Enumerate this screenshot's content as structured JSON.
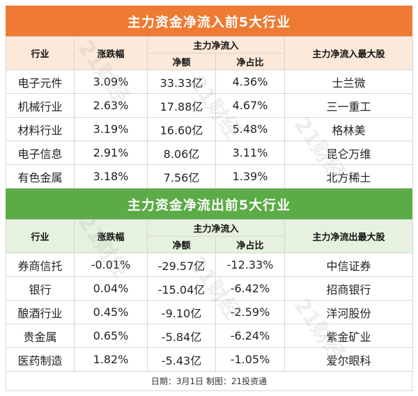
{
  "inflow": {
    "title": "主力资金净流入前5大行业",
    "headers": {
      "sector": "行业",
      "change": "涨跌幅",
      "main_flow": "主力净流入",
      "net_amount": "净额",
      "net_ratio": "净占比",
      "top_stock": "主力净流入最大股"
    },
    "rows": [
      {
        "sector": "电子元件",
        "change": "3.09%",
        "net_amount": "33.33亿",
        "net_ratio": "4.36%",
        "top_stock": "士兰微"
      },
      {
        "sector": "机械行业",
        "change": "2.63%",
        "net_amount": "17.88亿",
        "net_ratio": "4.67%",
        "top_stock": "三一重工"
      },
      {
        "sector": "材料行业",
        "change": "3.19%",
        "net_amount": "16.60亿",
        "net_ratio": "5.48%",
        "top_stock": "格林美"
      },
      {
        "sector": "电子信息",
        "change": "2.91%",
        "net_amount": "8.06亿",
        "net_ratio": "3.11%",
        "top_stock": "昆仑万维"
      },
      {
        "sector": "有色金属",
        "change": "3.18%",
        "net_amount": "7.56亿",
        "net_ratio": "1.39%",
        "top_stock": "北方稀土"
      }
    ]
  },
  "outflow": {
    "title": "主力资金净流出前5大行业",
    "headers": {
      "sector": "行业",
      "change": "涨跌幅",
      "main_flow": "主力净流入",
      "net_amount": "净额",
      "net_ratio": "净占比",
      "top_stock": "主力净流出最大股"
    },
    "rows": [
      {
        "sector": "券商信托",
        "change": "-0.01%",
        "net_amount": "-29.57亿",
        "net_ratio": "-12.33%",
        "top_stock": "中信证券"
      },
      {
        "sector": "银行",
        "change": "0.04%",
        "net_amount": "-15.04亿",
        "net_ratio": "-6.42%",
        "top_stock": "招商银行"
      },
      {
        "sector": "酿酒行业",
        "change": "0.45%",
        "net_amount": "-9.10亿",
        "net_ratio": "-2.59%",
        "top_stock": "洋河股份"
      },
      {
        "sector": "贵金属",
        "change": "0.65%",
        "net_amount": "-5.84亿",
        "net_ratio": "-6.24%",
        "top_stock": "紫金矿业"
      },
      {
        "sector": "医药制造",
        "change": "1.82%",
        "net_amount": "-5.43亿",
        "net_ratio": "-1.05%",
        "top_stock": "爱尔眼科"
      }
    ]
  },
  "footer": "日期：3月1日 制图：21投资通",
  "watermark": "21财经",
  "colors": {
    "inflow_accent": "#ee7a33",
    "outflow_accent": "#5bab46"
  }
}
